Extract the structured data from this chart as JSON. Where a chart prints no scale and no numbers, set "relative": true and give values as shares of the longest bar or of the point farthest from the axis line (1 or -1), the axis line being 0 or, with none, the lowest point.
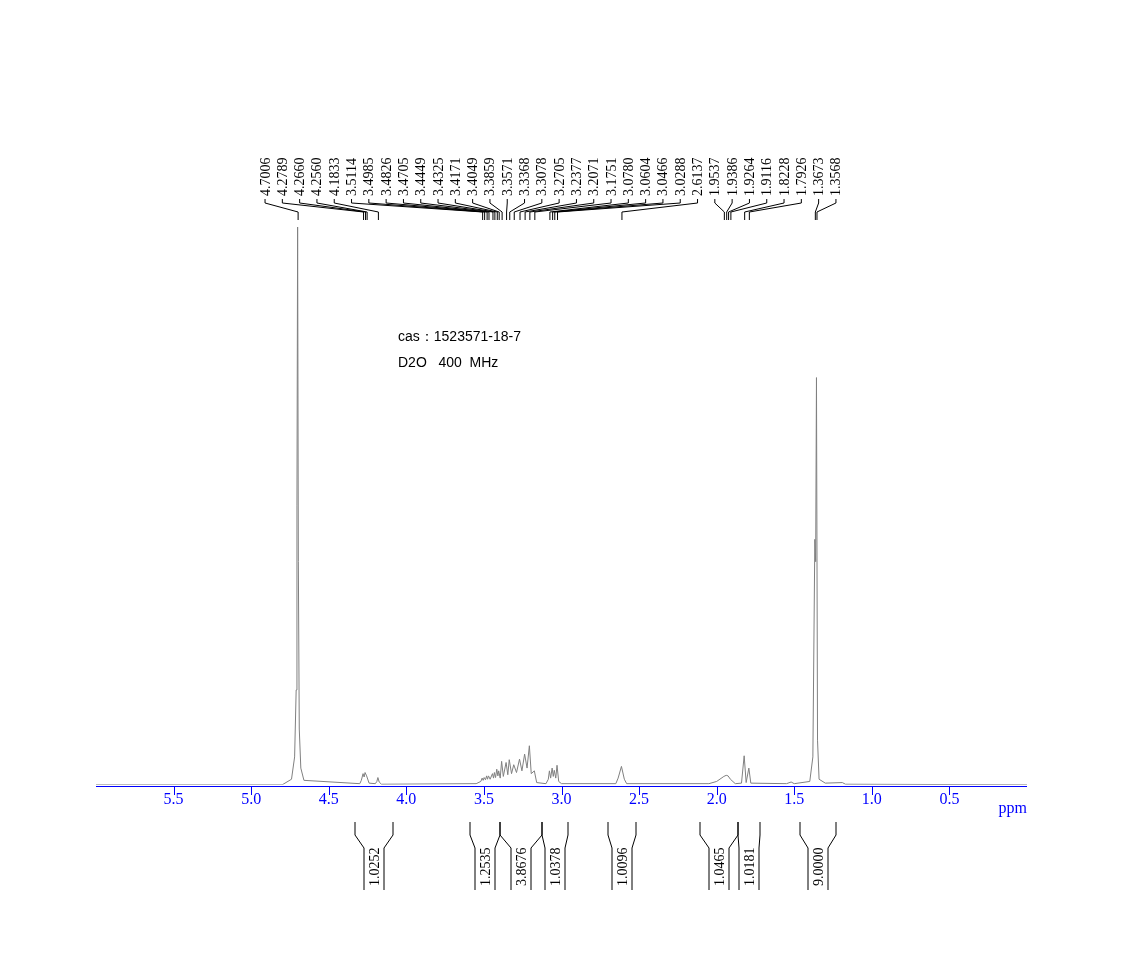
{
  "chart_data": {
    "type": "line",
    "relative": true,
    "xlabel": "ppm",
    "xlim": [
      6.0,
      0.0
    ],
    "xticks": [
      {
        "value": 5.5,
        "label": "5.5"
      },
      {
        "value": 5.0,
        "label": "5.0"
      },
      {
        "value": 4.5,
        "label": "4.5"
      },
      {
        "value": 4.0,
        "label": "4.0"
      },
      {
        "value": 3.5,
        "label": "3.5"
      },
      {
        "value": 3.0,
        "label": "3.0"
      },
      {
        "value": 2.5,
        "label": "2.5"
      },
      {
        "value": 2.0,
        "label": "2.0"
      },
      {
        "value": 1.5,
        "label": "1.5"
      },
      {
        "value": 1.0,
        "label": "1.0"
      },
      {
        "value": 0.5,
        "label": "0.5"
      }
    ],
    "grid": false,
    "legend": false,
    "marker": "none",
    "line_style": "solid",
    "series": [
      {
        "color": "#808080",
        "x": [
          6.0,
          4.8,
          4.74,
          4.72,
          4.71,
          4.705,
          4.7006,
          4.696,
          4.69,
          4.68,
          4.66,
          4.3,
          4.29,
          4.2789,
          4.272,
          4.266,
          4.256,
          4.24,
          4.2,
          4.19,
          4.1833,
          4.175,
          4.16,
          3.55,
          3.52,
          3.5114,
          3.505,
          3.4985,
          3.49,
          3.4826,
          3.477,
          3.4705,
          3.46,
          3.4449,
          3.438,
          3.4325,
          3.425,
          3.4171,
          3.41,
          3.4049,
          3.395,
          3.3859,
          3.375,
          3.3571,
          3.346,
          3.3368,
          3.322,
          3.3078,
          3.29,
          3.2705,
          3.255,
          3.2377,
          3.222,
          3.2071,
          3.195,
          3.1751,
          3.16,
          3.1,
          3.085,
          3.078,
          3.07,
          3.0604,
          3.053,
          3.0466,
          3.037,
          3.0288,
          3.018,
          3.0,
          2.65,
          2.635,
          2.6137,
          2.595,
          2.58,
          2.05,
          2.0,
          1.9537,
          1.9386,
          1.9264,
          1.9116,
          1.88,
          1.84,
          1.8228,
          1.81,
          1.7926,
          1.78,
          1.55,
          1.52,
          1.5,
          1.4,
          1.38,
          1.3673,
          1.362,
          1.3568,
          1.35,
          1.34,
          1.3,
          1.19,
          1.17,
          0.0
        ],
        "values": [
          0,
          0,
          0.01,
          0.05,
          0.17,
          0.5,
          1.0,
          0.4,
          0.1,
          0.03,
          0.008,
          0.002,
          0.008,
          0.02,
          0.014,
          0.022,
          0.016,
          0.003,
          0.002,
          0.006,
          0.013,
          0.005,
          0.001,
          0.002,
          0.006,
          0.012,
          0.008,
          0.013,
          0.009,
          0.016,
          0.01,
          0.016,
          0.01,
          0.02,
          0.012,
          0.022,
          0.013,
          0.028,
          0.016,
          0.025,
          0.012,
          0.042,
          0.015,
          0.04,
          0.018,
          0.045,
          0.02,
          0.036,
          0.022,
          0.046,
          0.025,
          0.055,
          0.03,
          0.07,
          0.02,
          0.025,
          0.004,
          0.002,
          0.01,
          0.025,
          0.012,
          0.03,
          0.015,
          0.026,
          0.012,
          0.035,
          0.006,
          0.002,
          0.002,
          0.012,
          0.033,
          0.01,
          0.002,
          0.002,
          0.006,
          0.015,
          0.017,
          0.016,
          0.01,
          0.002,
          0.003,
          0.052,
          0.004,
          0.03,
          0.003,
          0.002,
          0.005,
          0.002,
          0.006,
          0.05,
          0.44,
          0.4,
          0.73,
          0.08,
          0.01,
          0.003,
          0.004,
          0.001,
          0
        ]
      }
    ],
    "annotations": [
      "cas：1523571-18-7",
      "D2O   400  MHz",
      "1.0252",
      "1.2535",
      "3.8676",
      "1.0378",
      "1.0096",
      "1.0465",
      "1.0181",
      "9.0000",
      {
        "text": "4.7006",
        "x": 4.7006
      },
      {
        "text": "4.2789",
        "x": 4.2789
      },
      {
        "text": "4.2660",
        "x": 4.266
      },
      {
        "text": "4.2560",
        "x": 4.256
      },
      {
        "text": "4.1833",
        "x": 4.1833
      },
      {
        "text": "3.5114",
        "x": 3.5114
      },
      {
        "text": "3.4985",
        "x": 3.4985
      },
      {
        "text": "3.4826",
        "x": 3.4826
      },
      {
        "text": "3.4705",
        "x": 3.4705
      },
      {
        "text": "3.4449",
        "x": 3.4449
      },
      {
        "text": "3.4325",
        "x": 3.4325
      },
      {
        "text": "3.4171",
        "x": 3.4171
      },
      {
        "text": "3.4049",
        "x": 3.4049
      },
      {
        "text": "3.3859",
        "x": 3.3859
      },
      {
        "text": "3.3571",
        "x": 3.3571
      },
      {
        "text": "3.3368",
        "x": 3.3368
      },
      {
        "text": "3.3078",
        "x": 3.3078
      },
      {
        "text": "3.2705",
        "x": 3.2705
      },
      {
        "text": "3.2377",
        "x": 3.2377
      },
      {
        "text": "3.2071",
        "x": 3.2071
      },
      {
        "text": "3.1751",
        "x": 3.1751
      },
      {
        "text": "3.0780",
        "x": 3.078
      },
      {
        "text": "3.0604",
        "x": 3.0604
      },
      {
        "text": "3.0466",
        "x": 3.0466
      },
      {
        "text": "3.0288",
        "x": 3.0288
      },
      {
        "text": "2.6137",
        "x": 2.6137
      },
      {
        "text": "1.9537",
        "x": 1.9537
      },
      {
        "text": "1.9386",
        "x": 1.9386
      },
      {
        "text": "1.9264",
        "x": 1.9264
      },
      {
        "text": "1.9116",
        "x": 1.9116
      },
      {
        "text": "1.8228",
        "x": 1.8228
      },
      {
        "text": "1.7926",
        "x": 1.7926
      },
      {
        "text": "1.3673",
        "x": 1.3673
      },
      {
        "text": "1.3568",
        "x": 1.3568
      }
    ]
  }
}
